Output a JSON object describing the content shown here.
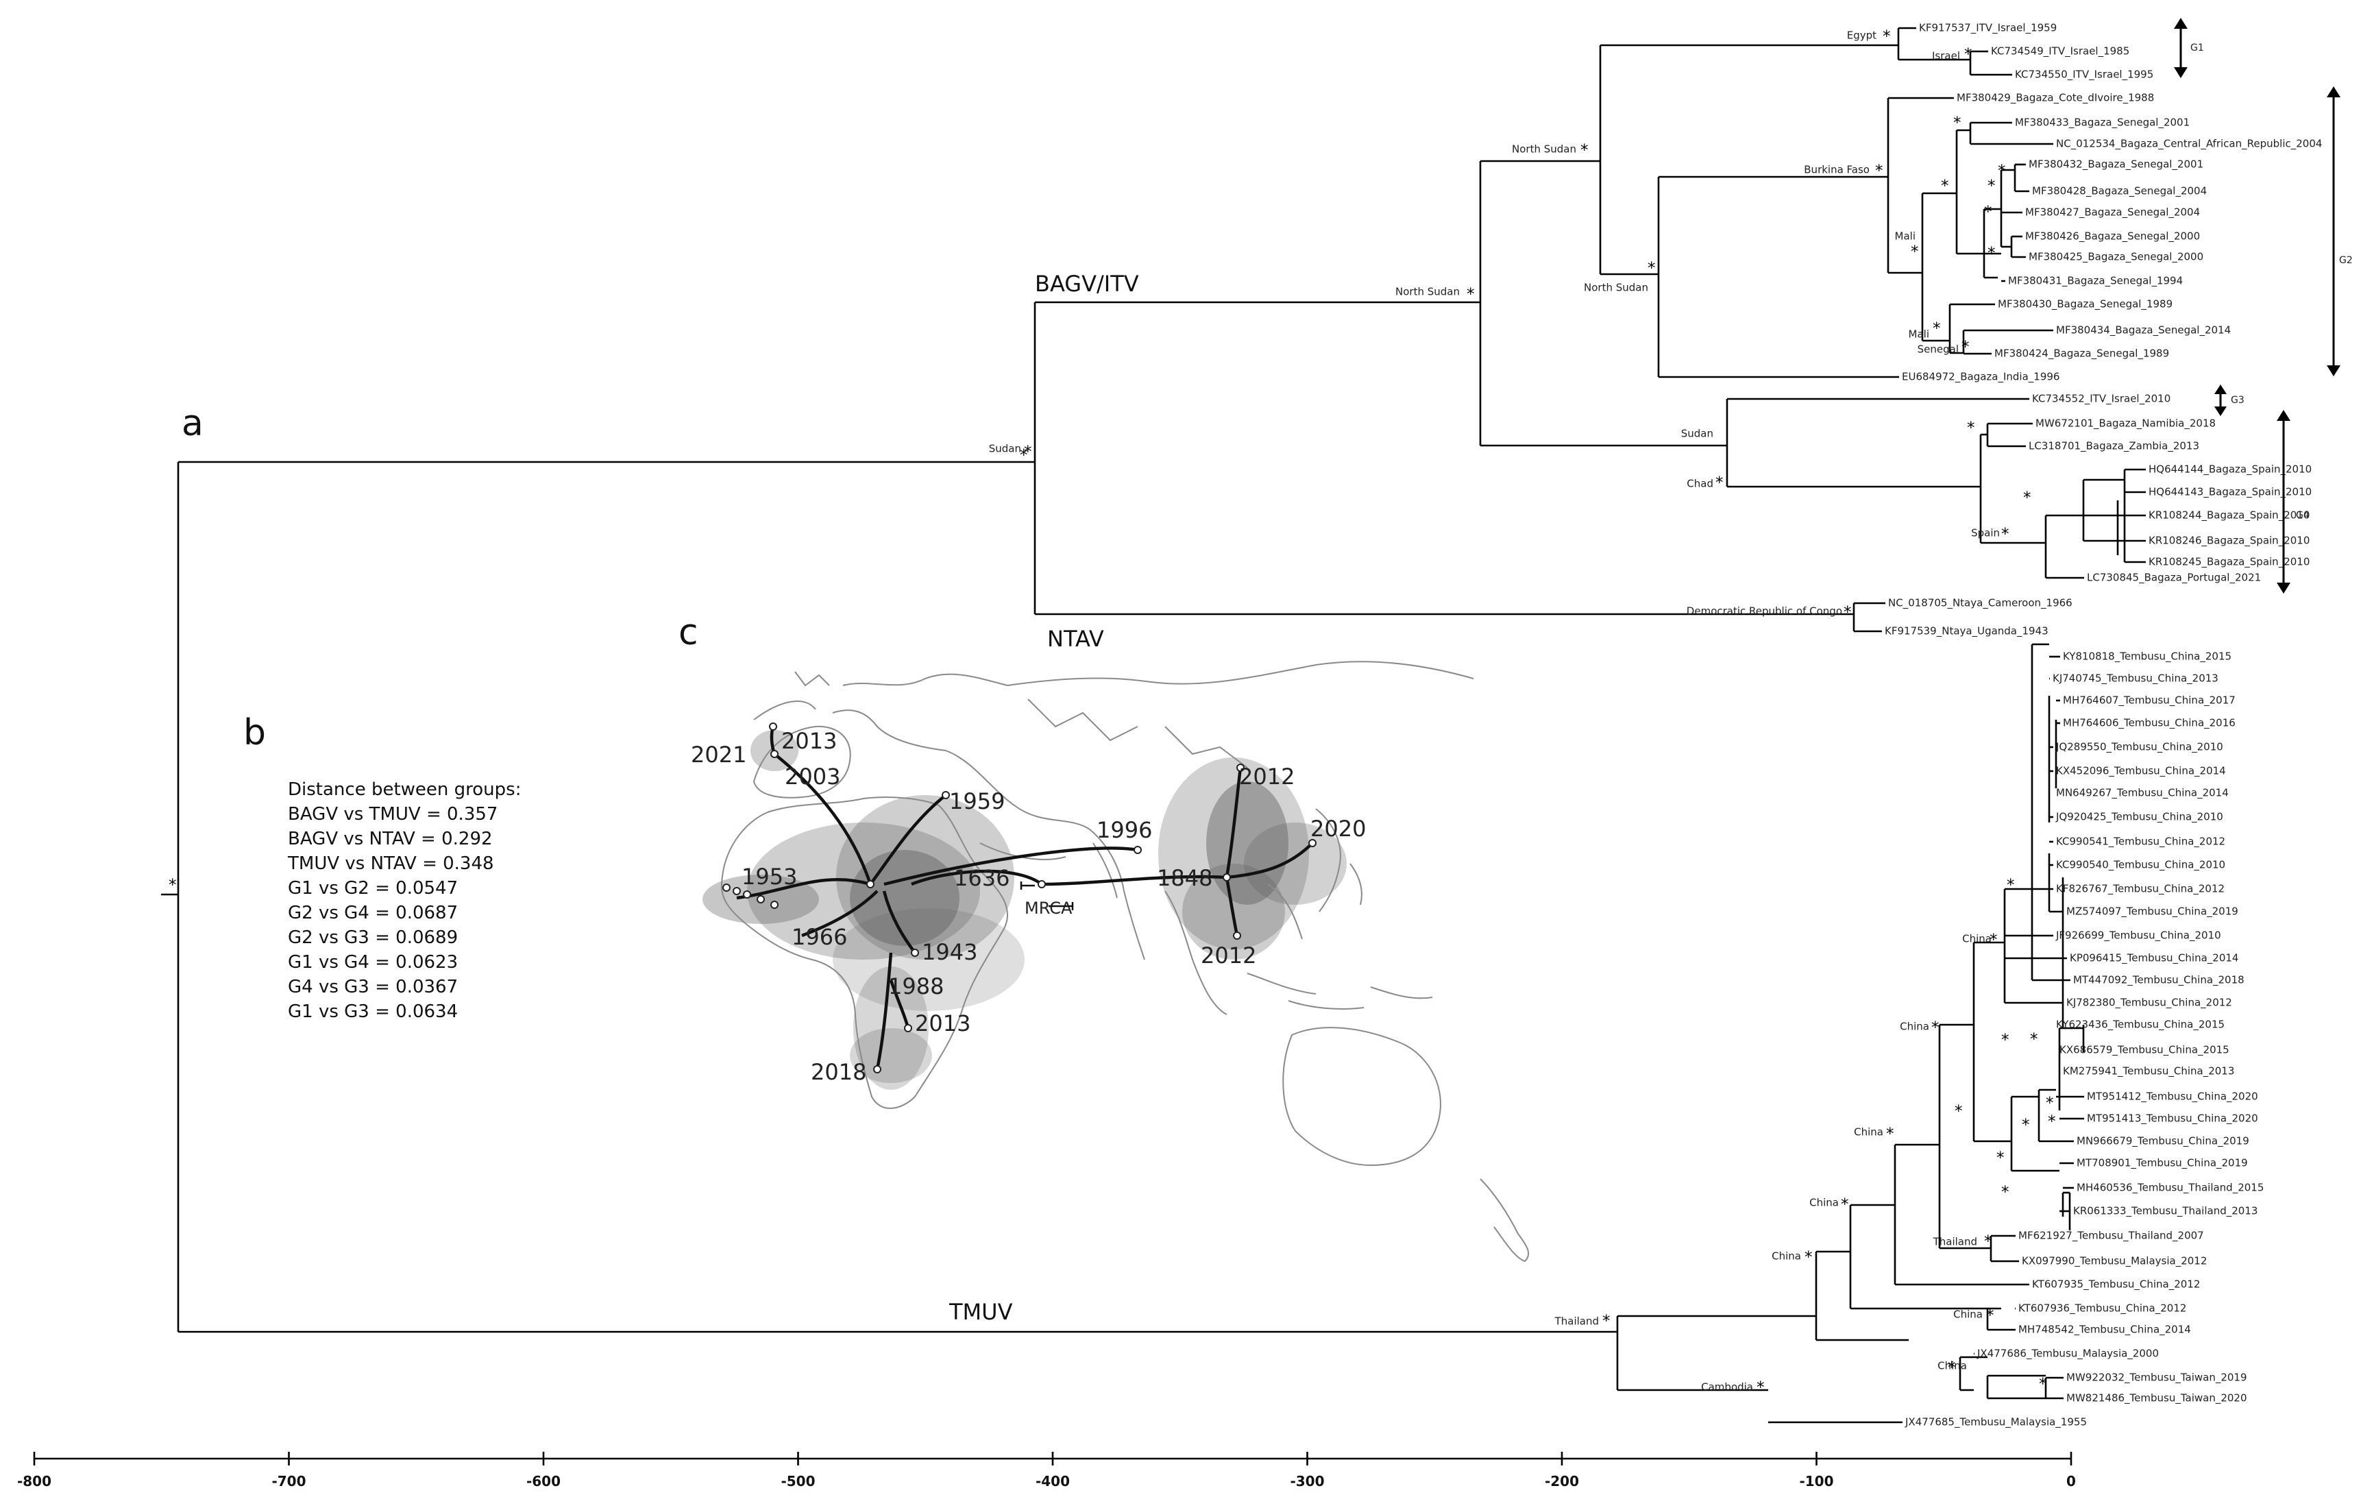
{
  "panels": {
    "a": "a",
    "b": "b",
    "c": "c"
  },
  "clades": {
    "bagv_itv": "BAGV/ITV",
    "ntav": "NTAV",
    "tmuv": "TMUV"
  },
  "distances": {
    "title": "Distance between groups:",
    "lines": [
      "BAGV vs TMUV = 0.357",
      "BAGV vs NTAV = 0.292",
      "TMUV vs NTAV = 0.348",
      "G1 vs G2 = 0.0547",
      "G2 vs G4 = 0.0687",
      "G2 vs G3 = 0.0689",
      "G1 vs G4 = 0.0623",
      "G4 vs G3 = 0.0367",
      "G1 vs G3 = 0.0634"
    ]
  },
  "groups": [
    {
      "label": "G1"
    },
    {
      "label": "G2"
    },
    {
      "label": "G3"
    },
    {
      "label": "G4"
    }
  ],
  "axis": {
    "ticks": [
      "-800",
      "-700",
      "-600",
      "-500",
      "-400",
      "-300",
      "-200",
      "-100",
      "0"
    ]
  },
  "tips": [
    "KF917537_ITV_Israel_1959",
    "KC734549_ITV_Israel_1985",
    "KC734550_ITV_Israel_1995",
    "MF380429_Bagaza_Cote_dIvoire_1988",
    "MF380433_Bagaza_Senegal_2001",
    "NC_012534_Bagaza_Central_African_Republic_2004",
    "MF380432_Bagaza_Senegal_2001",
    "MF380428_Bagaza_Senegal_2004",
    "MF380427_Bagaza_Senegal_2004",
    "MF380426_Bagaza_Senegal_2000",
    "MF380425_Bagaza_Senegal_2000",
    "MF380431_Bagaza_Senegal_1994",
    "MF380430_Bagaza_Senegal_1989",
    "MF380434_Bagaza_Senegal_2014",
    "MF380424_Bagaza_Senegal_1989",
    "EU684972_Bagaza_India_1996",
    "KC734552_ITV_Israel_2010",
    "MW672101_Bagaza_Namibia_2018",
    "LC318701_Bagaza_Zambia_2013",
    "HQ644144_Bagaza_Spain_2010",
    "HQ644143_Bagaza_Spain_2010",
    "KR108244_Bagaza_Spain_2010",
    "KR108246_Bagaza_Spain_2010",
    "KR108245_Bagaza_Spain_2010",
    "LC730845_Bagaza_Portugal_2021",
    "NC_018705_Ntaya_Cameroon_1966",
    "KF917539_Ntaya_Uganda_1943",
    "KY810818_Tembusu_China_2015",
    "KJ740745_Tembusu_China_2013",
    "MH764607_Tembusu_China_2017",
    "MH764606_Tembusu_China_2016",
    "JQ289550_Tembusu_China_2010",
    "KX452096_Tembusu_China_2014",
    "MN649267_Tembusu_China_2014",
    "JQ920425_Tembusu_China_2010",
    "KC990541_Tembusu_China_2012",
    "KC990540_Tembusu_China_2010",
    "KF826767_Tembusu_China_2012",
    "MZ574097_Tembusu_China_2019",
    "JF926699_Tembusu_China_2010",
    "KP096415_Tembusu_China_2014",
    "MT447092_Tembusu_China_2018",
    "KJ782380_Tembusu_China_2012",
    "KY623436_Tembusu_China_2015",
    "KX686579_Tembusu_China_2015",
    "KM275941_Tembusu_China_2013",
    "MT951412_Tembusu_China_2020",
    "MT951413_Tembusu_China_2020",
    "MN966679_Tembusu_China_2019",
    "MT708901_Tembusu_China_2019",
    "MH460536_Tembusu_Thailand_2015",
    "KR061333_Tembusu_Thailand_2013",
    "MF621927_Tembusu_Thailand_2007",
    "KX097990_Tembusu_Malaysia_2012",
    "KT607935_Tembusu_China_2012",
    "KT607936_Tembusu_China_2012",
    "MH748542_Tembusu_China_2014",
    "JX477686_Tembusu_Malaysia_2000",
    "MW922032_Tembusu_Taiwan_2019",
    "MW821486_Tembusu_Taiwan_2020",
    "JX477685_Tembusu_Malaysia_1955"
  ],
  "node_labels": {
    "egypt": "Egypt",
    "israel": "Israel",
    "north_sudan_top": "North Sudan",
    "north_sudan_bagv": "North Sudan",
    "north_sudan_inner": "North Sudan",
    "burkina_faso": "Burkina Faso",
    "mali_1": "Mali",
    "mali_2": "Mali",
    "senegal": "Senegal",
    "sudan_root": "Sudan",
    "sudan_g34": "Sudan",
    "chad": "Chad",
    "spain": "Spain",
    "drc": "Democratic Republic of Congo",
    "thailand_root": "Thailand",
    "china_1": "China",
    "china_2": "China",
    "china_3": "China",
    "china_4": "China",
    "china_5": "China",
    "china_6": "China",
    "thailand_inner": "Thailand",
    "cambodia": "Cambodia",
    "star": "*"
  },
  "map": {
    "years": [
      "2021",
      "2013",
      "2003",
      "1959",
      "1996",
      "1953",
      "1636",
      "1848",
      "2012",
      "2020",
      "1966",
      "1943",
      "1988",
      "2013",
      "2018",
      "2012"
    ],
    "mrca_label": "MRCA"
  }
}
